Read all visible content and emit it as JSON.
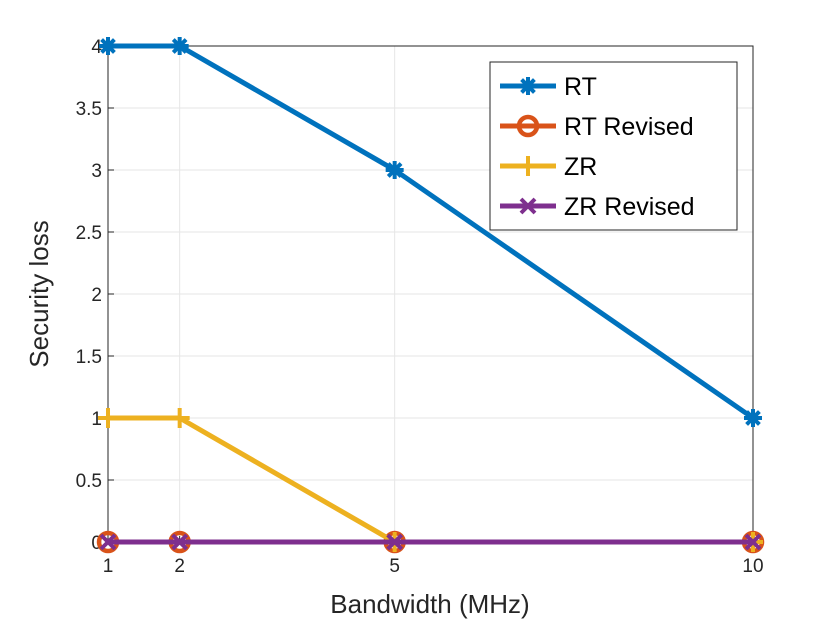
{
  "chart_data": {
    "type": "line",
    "xlabel": "Bandwidth (MHz)",
    "ylabel": "Security loss",
    "x": [
      1,
      2,
      5,
      10
    ],
    "xlim": [
      1,
      10
    ],
    "ylim": [
      0,
      4
    ],
    "xticks": [
      1,
      2,
      5,
      10
    ],
    "xtick_labels": [
      "1",
      "2",
      "5",
      "10"
    ],
    "yticks": [
      0,
      0.5,
      1,
      1.5,
      2,
      2.5,
      3,
      3.5,
      4
    ],
    "ytick_labels": [
      "0",
      "0.5",
      "1",
      "1.5",
      "2",
      "2.5",
      "3",
      "3.5",
      "4"
    ],
    "grid": true,
    "legend_position": "top-right",
    "series": [
      {
        "name": "RT",
        "values": [
          4,
          4,
          3,
          1
        ],
        "color": "#0072BD",
        "marker": "asterisk"
      },
      {
        "name": "RT Revised",
        "values": [
          0,
          0,
          0,
          0
        ],
        "color": "#D95319",
        "marker": "circle"
      },
      {
        "name": "ZR",
        "values": [
          1,
          1,
          0,
          0
        ],
        "color": "#EDB120",
        "marker": "plus"
      },
      {
        "name": "ZR Revised",
        "values": [
          0,
          0,
          0,
          0
        ],
        "color": "#7E2F8E",
        "marker": "x"
      }
    ]
  }
}
